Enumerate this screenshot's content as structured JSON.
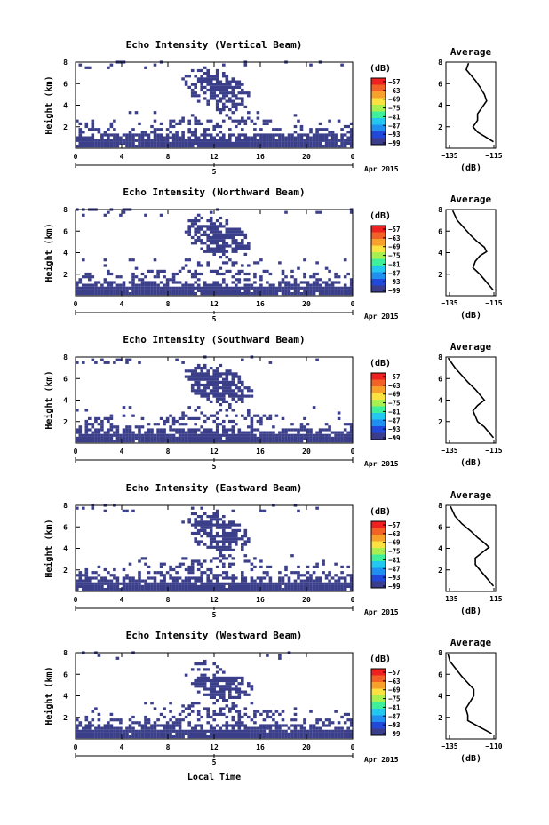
{
  "figure": {
    "xlabel": "Local Time",
    "date_label": "Apr 2015",
    "colorbar": {
      "unit_label": "(dB)",
      "ticks": [
        -57,
        -63,
        -69,
        -75,
        -81,
        -87,
        -93,
        -99
      ],
      "colors": [
        "#ee2020",
        "#f26226",
        "#f7a12c",
        "#fbe240",
        "#a8ef50",
        "#3ff09a",
        "#22c8f0",
        "#1f90f0",
        "#2148d8",
        "#3a3c8c"
      ],
      "range": [
        -99,
        -57
      ]
    },
    "echo_color": "#3b3f8a"
  },
  "chart_data": [
    {
      "type": "heatmap",
      "panel": "vertical",
      "title": "Echo Intensity (Vertical Beam)",
      "ylabel": "Height (km)",
      "xlim": [
        0,
        24
      ],
      "ylim": [
        0,
        8
      ],
      "x_ticks": [
        "0",
        "4",
        "8",
        "12",
        "16",
        "20",
        "0"
      ],
      "y_ticks": [
        "2",
        "4",
        "6",
        "8"
      ],
      "day_label": "5",
      "profile": {
        "title": "Average",
        "xlabel": "(dB)",
        "x_ticks": [
          "-135",
          "-115"
        ],
        "xlim": [
          -135,
          -113
        ],
        "ylim": [
          0,
          8
        ],
        "y_ticks": [
          "2",
          "4",
          "6",
          "8"
        ],
        "points": [
          [
            -125,
            7.9
          ],
          [
            -126,
            7.3
          ],
          [
            -124,
            6.8
          ],
          [
            -122,
            6.3
          ],
          [
            -120,
            5.7
          ],
          [
            -118,
            5.0
          ],
          [
            -117,
            4.4
          ],
          [
            -119,
            3.8
          ],
          [
            -121,
            3.2
          ],
          [
            -121,
            2.6
          ],
          [
            -123,
            2.0
          ],
          [
            -121,
            1.5
          ],
          [
            -117,
            1.0
          ],
          [
            -114,
            0.6
          ]
        ]
      }
    },
    {
      "type": "heatmap",
      "panel": "northward",
      "title": "Echo Intensity (Northward Beam)",
      "ylabel": "Height (km)",
      "xlim": [
        0,
        24
      ],
      "ylim": [
        0,
        8
      ],
      "x_ticks": [
        "0",
        "4",
        "8",
        "12",
        "16",
        "20",
        "0"
      ],
      "y_ticks": [
        "2",
        "4",
        "6",
        "8"
      ],
      "day_label": "5",
      "profile": {
        "title": "Average",
        "xlabel": "(dB)",
        "x_ticks": [
          "-135",
          "-115"
        ],
        "xlim": [
          -135,
          -113
        ],
        "ylim": [
          0,
          8
        ],
        "y_ticks": [
          "2",
          "4",
          "6",
          "8"
        ],
        "points": [
          [
            -132,
            7.9
          ],
          [
            -130,
            7.0
          ],
          [
            -127,
            6.3
          ],
          [
            -124,
            5.6
          ],
          [
            -121,
            5.0
          ],
          [
            -118,
            4.5
          ],
          [
            -117,
            4.1
          ],
          [
            -120,
            3.7
          ],
          [
            -122,
            3.2
          ],
          [
            -123,
            2.6
          ],
          [
            -120,
            2.0
          ],
          [
            -118,
            1.5
          ],
          [
            -116,
            1.0
          ],
          [
            -114,
            0.5
          ]
        ]
      }
    },
    {
      "type": "heatmap",
      "panel": "southward",
      "title": "Echo Intensity (Southward Beam)",
      "ylabel": "Height (km)",
      "xlim": [
        0,
        24
      ],
      "ylim": [
        0,
        8
      ],
      "x_ticks": [
        "0",
        "4",
        "8",
        "12",
        "16",
        "20",
        "0"
      ],
      "y_ticks": [
        "2",
        "4",
        "6",
        "8"
      ],
      "day_label": "5",
      "profile": {
        "title": "Average",
        "xlabel": "(dB)",
        "x_ticks": [
          "-135",
          "-115"
        ],
        "xlim": [
          -135,
          -113
        ],
        "ylim": [
          0,
          8
        ],
        "y_ticks": [
          "2",
          "4",
          "6",
          "8"
        ],
        "points": [
          [
            -134,
            7.9
          ],
          [
            -131,
            7.0
          ],
          [
            -128,
            6.3
          ],
          [
            -125,
            5.6
          ],
          [
            -122,
            5.0
          ],
          [
            -120,
            4.5
          ],
          [
            -118,
            4.0
          ],
          [
            -121,
            3.5
          ],
          [
            -123,
            3.0
          ],
          [
            -122,
            2.5
          ],
          [
            -121,
            2.0
          ],
          [
            -118,
            1.5
          ],
          [
            -116,
            1.0
          ],
          [
            -114,
            0.5
          ]
        ]
      }
    },
    {
      "type": "heatmap",
      "panel": "eastward",
      "title": "Echo Intensity (Eastward Beam)",
      "ylabel": "Height (km)",
      "xlim": [
        0,
        24
      ],
      "ylim": [
        0,
        8
      ],
      "x_ticks": [
        "0",
        "4",
        "8",
        "12",
        "16",
        "20",
        "0"
      ],
      "y_ticks": [
        "2",
        "4",
        "6",
        "8"
      ],
      "day_label": "5",
      "profile": {
        "title": "Average",
        "xlabel": "(dB)",
        "x_ticks": [
          "-135",
          "-115"
        ],
        "xlim": [
          -135,
          -113
        ],
        "ylim": [
          0,
          8
        ],
        "y_ticks": [
          "2",
          "4",
          "6",
          "8"
        ],
        "points": [
          [
            -133,
            7.9
          ],
          [
            -131,
            7.0
          ],
          [
            -128,
            6.3
          ],
          [
            -124,
            5.6
          ],
          [
            -121,
            5.0
          ],
          [
            -118,
            4.5
          ],
          [
            -116,
            4.1
          ],
          [
            -119,
            3.6
          ],
          [
            -122,
            3.1
          ],
          [
            -122,
            2.5
          ],
          [
            -120,
            2.0
          ],
          [
            -118,
            1.5
          ],
          [
            -116,
            1.0
          ],
          [
            -114,
            0.5
          ]
        ]
      }
    },
    {
      "type": "heatmap",
      "panel": "westward",
      "title": "Echo Intensity (Westward Beam)",
      "ylabel": "Height (km)",
      "xlim": [
        0,
        24
      ],
      "ylim": [
        0,
        8
      ],
      "x_ticks": [
        "0",
        "4",
        "8",
        "12",
        "16",
        "20",
        "0"
      ],
      "y_ticks": [
        "2",
        "4",
        "6",
        "8"
      ],
      "day_label": "5",
      "profile": {
        "title": "Average",
        "xlabel": "(dB)",
        "x_ticks": [
          "-135",
          "-110"
        ],
        "xlim": [
          -135,
          -110
        ],
        "ylim": [
          0,
          8
        ],
        "y_ticks": [
          "2",
          "4",
          "6",
          "8"
        ],
        "points": [
          [
            -134,
            7.9
          ],
          [
            -133,
            7.2
          ],
          [
            -130,
            6.5
          ],
          [
            -127,
            5.8
          ],
          [
            -124,
            5.2
          ],
          [
            -121,
            4.6
          ],
          [
            -121,
            4.0
          ],
          [
            -123,
            3.4
          ],
          [
            -125,
            2.8
          ],
          [
            -124,
            2.2
          ],
          [
            -124,
            1.7
          ],
          [
            -119,
            1.2
          ],
          [
            -115,
            0.8
          ],
          [
            -112,
            0.5
          ]
        ]
      }
    }
  ]
}
